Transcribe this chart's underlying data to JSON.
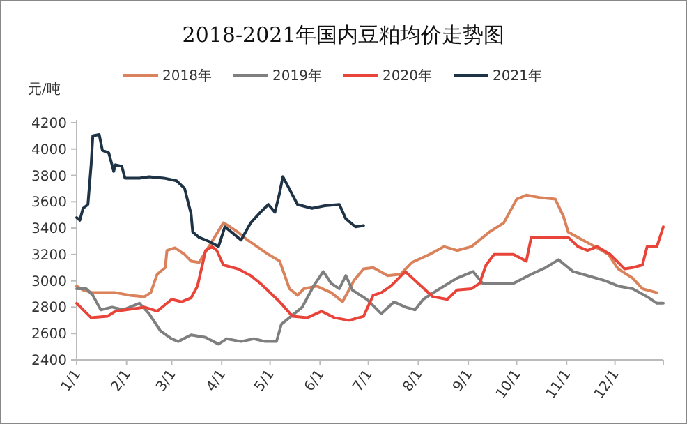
{
  "chart_data": {
    "type": "line",
    "title": "2018-2021年国内豆粕均价走势图",
    "ylabel": "元/吨",
    "legend": "top",
    "xlim": [
      "--01-01",
      "--12-31"
    ],
    "xticks": [
      {
        "value": "--01-01",
        "label": "1/1"
      },
      {
        "value": "--02-01",
        "label": "2/1"
      },
      {
        "value": "--03-01",
        "label": "3/1"
      },
      {
        "value": "--04-01",
        "label": "4/1"
      },
      {
        "value": "--05-01",
        "label": "5/1"
      },
      {
        "value": "--06-01",
        "label": "6/1"
      },
      {
        "value": "--07-01",
        "label": "7/1"
      },
      {
        "value": "--08-01",
        "label": "8/1"
      },
      {
        "value": "--09-01",
        "label": "9/1"
      },
      {
        "value": "--10-01",
        "label": "10/1"
      },
      {
        "value": "--11-01",
        "label": "11/1"
      },
      {
        "value": "--12-01",
        "label": "12/1"
      }
    ],
    "ylim": [
      2400,
      4200
    ],
    "yticks": [
      2400,
      2600,
      2800,
      3000,
      3200,
      3400,
      3600,
      3800,
      4000,
      4200
    ],
    "series": [
      {
        "name": "2018年",
        "color": "#d9825b",
        "x": [
          "--01-01",
          "--01-05",
          "--01-11",
          "--01-25",
          "--02-03",
          "--02-12",
          "--02-16",
          "--02-20",
          "--02-25",
          "--02-26",
          "--03-03",
          "--03-09",
          "--03-13",
          "--03-18",
          "--04-02",
          "--04-05",
          "--04-11",
          "--04-17",
          "--04-24",
          "--04-30",
          "--05-07",
          "--05-13",
          "--05-18",
          "--05-22",
          "--05-30",
          "--06-08",
          "--06-15",
          "--06-22",
          "--06-28",
          "--07-04",
          "--07-13",
          "--07-21",
          "--07-28",
          "--08-08",
          "--08-17",
          "--08-25",
          "--09-03",
          "--09-14",
          "--09-23",
          "--10-01",
          "--10-07",
          "--10-16",
          "--10-25",
          "--10-30",
          "--11-02",
          "--11-11",
          "--11-20",
          "--11-27",
          "--12-03",
          "--12-12",
          "--12-18",
          "--12-27"
        ],
        "values": [
          2960,
          2930,
          2910,
          2910,
          2890,
          2880,
          2910,
          3050,
          3100,
          3230,
          3250,
          3200,
          3150,
          3140,
          3440,
          3420,
          3370,
          3310,
          3250,
          3200,
          3150,
          2940,
          2890,
          2940,
          2960,
          2910,
          2840,
          3000,
          3090,
          3100,
          3040,
          3050,
          3140,
          3200,
          3260,
          3230,
          3260,
          3370,
          3440,
          3620,
          3650,
          3630,
          3620,
          3490,
          3370,
          3310,
          3250,
          3200,
          3090,
          3020,
          2940,
          2910
        ]
      },
      {
        "name": "2019年",
        "color": "#7f7f7f",
        "x": [
          "--01-01",
          "--01-07",
          "--01-11",
          "--01-16",
          "--01-23",
          "--01-30",
          "--02-09",
          "--02-15",
          "--02-22",
          "--03-01",
          "--03-05",
          "--03-13",
          "--03-22",
          "--03-30",
          "--04-04",
          "--04-13",
          "--04-21",
          "--04-28",
          "--05-05",
          "--05-08",
          "--05-14",
          "--05-21",
          "--05-28",
          "--06-03",
          "--06-08",
          "--06-13",
          "--06-17",
          "--06-21",
          "--06-30",
          "--07-09",
          "--07-17",
          "--07-24",
          "--07-30",
          "--08-04",
          "--08-13",
          "--08-25",
          "--09-04",
          "--09-10",
          "--09-20",
          "--09-29",
          "--10-10",
          "--10-19",
          "--10-27",
          "--11-05",
          "--11-14",
          "--11-25",
          "--12-03",
          "--12-12",
          "--12-21",
          "--12-27",
          "--12-31"
        ],
        "values": [
          2940,
          2940,
          2890,
          2780,
          2800,
          2780,
          2830,
          2750,
          2620,
          2560,
          2540,
          2590,
          2570,
          2520,
          2560,
          2540,
          2560,
          2540,
          2540,
          2670,
          2730,
          2800,
          2960,
          3070,
          2980,
          2940,
          3040,
          2930,
          2860,
          2750,
          2840,
          2800,
          2780,
          2860,
          2930,
          3020,
          3070,
          2980,
          2980,
          2980,
          3050,
          3100,
          3160,
          3070,
          3040,
          3000,
          2960,
          2940,
          2880,
          2830,
          2830
        ]
      },
      {
        "name": "2020年",
        "color": "#e8443a",
        "x": [
          "--01-01",
          "--01-10",
          "--01-20",
          "--01-25",
          "--02-06",
          "--02-12",
          "--02-20",
          "--03-01",
          "--03-07",
          "--03-13",
          "--03-17",
          "--03-20",
          "--03-22",
          "--03-26",
          "--03-29",
          "--04-02",
          "--04-11",
          "--04-19",
          "--04-25",
          "--05-07",
          "--05-15",
          "--05-24",
          "--06-02",
          "--06-10",
          "--06-19",
          "--06-28",
          "--07-04",
          "--07-09",
          "--07-15",
          "--07-24",
          "--08-01",
          "--08-10",
          "--08-19",
          "--08-25",
          "--09-03",
          "--09-08",
          "--09-12",
          "--09-17",
          "--09-29",
          "--10-07",
          "--10-10",
          "--10-21",
          "--11-02",
          "--11-08",
          "--11-14",
          "--11-20",
          "--11-28",
          "--12-03",
          "--12-07",
          "--12-12",
          "--12-18",
          "--12-21",
          "--12-27",
          "--12-31"
        ],
        "values": [
          2830,
          2720,
          2730,
          2770,
          2790,
          2800,
          2770,
          2860,
          2840,
          2870,
          2960,
          3120,
          3230,
          3260,
          3230,
          3120,
          3090,
          3040,
          2980,
          2840,
          2730,
          2720,
          2770,
          2720,
          2700,
          2730,
          2890,
          2910,
          2960,
          3070,
          2980,
          2880,
          2860,
          2930,
          2940,
          2980,
          3120,
          3200,
          3200,
          3150,
          3330,
          3330,
          3330,
          3260,
          3230,
          3260,
          3200,
          3140,
          3090,
          3100,
          3120,
          3260,
          3260,
          3410
        ]
      },
      {
        "name": "2021年",
        "color": "#1f3347",
        "x": [
          "--01-01",
          "--01-03",
          "--01-05",
          "--01-08",
          "--01-10",
          "--01-11",
          "--01-15",
          "--01-17",
          "--01-21",
          "--01-24",
          "--01-25",
          "--01-29",
          "--01-31",
          "--02-09",
          "--02-15",
          "--02-24",
          "--03-04",
          "--03-09",
          "--03-13",
          "--03-14",
          "--03-18",
          "--03-24",
          "--03-30",
          "--04-03",
          "--04-08",
          "--04-13",
          "--04-19",
          "--04-25",
          "--04-30",
          "--05-04",
          "--05-07",
          "--05-09",
          "--05-18",
          "--05-27",
          "--06-04",
          "--06-13",
          "--06-17",
          "--06-23",
          "--06-28"
        ],
        "values": [
          3480,
          3460,
          3550,
          3580,
          3880,
          4100,
          4110,
          3990,
          3970,
          3830,
          3880,
          3870,
          3780,
          3780,
          3790,
          3780,
          3760,
          3700,
          3510,
          3370,
          3330,
          3300,
          3260,
          3410,
          3360,
          3310,
          3440,
          3520,
          3580,
          3520,
          3670,
          3790,
          3580,
          3550,
          3570,
          3580,
          3470,
          3410,
          3420
        ]
      }
    ]
  }
}
